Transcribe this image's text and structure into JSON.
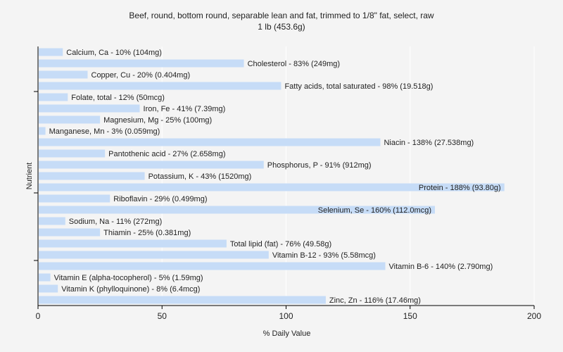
{
  "chart_data": {
    "type": "bar",
    "orientation": "horizontal",
    "title": "Beef, round, bottom round, separable lean and fat, trimmed to 1/8\" fat, select, raw",
    "subtitle": "1 lb (453.6g)",
    "xlabel": "% Daily Value",
    "ylabel": "Nutrient",
    "xlim": [
      0,
      200
    ],
    "xticks": [
      0,
      50,
      100,
      150,
      200
    ],
    "grid": true,
    "bar_color": "#c6dcf7",
    "categories": [
      "Calcium, Ca",
      "Cholesterol",
      "Copper, Cu",
      "Fatty acids, total saturated",
      "Folate, total",
      "Iron, Fe",
      "Magnesium, Mg",
      "Manganese, Mn",
      "Niacin",
      "Pantothenic acid",
      "Phosphorus, P",
      "Potassium, K",
      "Protein",
      "Riboflavin",
      "Selenium, Se",
      "Sodium, Na",
      "Thiamin",
      "Total lipid (fat)",
      "Vitamin B-12",
      "Vitamin B-6",
      "Vitamin E (alpha-tocopherol)",
      "Vitamin K (phylloquinone)",
      "Zinc, Zn"
    ],
    "values": [
      10,
      83,
      20,
      98,
      12,
      41,
      25,
      3,
      138,
      27,
      91,
      43,
      188,
      29,
      160,
      11,
      25,
      76,
      93,
      140,
      5,
      8,
      116
    ],
    "labels": [
      "Calcium, Ca - 10% (104mg)",
      "Cholesterol - 83% (249mg)",
      "Copper, Cu - 20% (0.404mg)",
      "Fatty acids, total saturated - 98% (19.518g)",
      "Folate, total - 12% (50mcg)",
      "Iron, Fe - 41% (7.39mg)",
      "Magnesium, Mg - 25% (100mg)",
      "Manganese, Mn - 3% (0.059mg)",
      "Niacin - 138% (27.538mg)",
      "Pantothenic acid - 27% (2.658mg)",
      "Phosphorus, P - 91% (912mg)",
      "Potassium, K - 43% (1520mg)",
      "Protein - 188% (93.80g)",
      "Riboflavin - 29% (0.499mg)",
      "Selenium, Se - 160% (112.0mcg)",
      "Sodium, Na - 11% (272mg)",
      "Thiamin - 25% (0.381mg)",
      "Total lipid (fat) - 76% (49.58g)",
      "Vitamin B-12 - 93% (5.58mcg)",
      "Vitamin B-6 - 140% (2.790mg)",
      "Vitamin E (alpha-tocopherol) - 5% (1.59mg)",
      "Vitamin K (phylloquinone) - 8% (6.4mcg)",
      "Zinc, Zn - 116% (17.46mg)"
    ]
  }
}
